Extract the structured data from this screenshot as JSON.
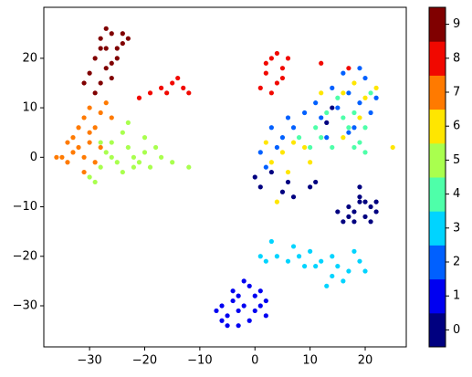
{
  "chart_data": {
    "type": "scatter",
    "xlim": [
      -38.3,
      27.45
    ],
    "ylim": [
      -38.3,
      30.3
    ],
    "xticks": [
      {
        "value": -30,
        "label": "−30"
      },
      {
        "value": -20,
        "label": "−20"
      },
      {
        "value": -10,
        "label": "−10"
      },
      0,
      10,
      20
    ],
    "yticks": [
      {
        "value": -30,
        "label": "−30"
      },
      {
        "value": -20,
        "label": "−20"
      },
      {
        "value": -10,
        "label": "−10"
      },
      0,
      10,
      20
    ],
    "series": [
      {
        "name": "0",
        "color": "#000080",
        "x": [
          17,
          18,
          19,
          20,
          21,
          22,
          18,
          19,
          21,
          20,
          17,
          22,
          15,
          16,
          5,
          6,
          10,
          11,
          0,
          1,
          3,
          14,
          13,
          7,
          19
        ],
        "y": [
          -10,
          -11,
          -9,
          -12,
          -10,
          -11,
          -13,
          -8,
          -13,
          -9,
          -12,
          -9,
          -11,
          -13,
          -7,
          -5,
          -6,
          -5,
          -4,
          -6,
          -3,
          10,
          7,
          -8,
          -6
        ]
      },
      {
        "name": "1",
        "color": "#0000f1",
        "x": [
          -2,
          -3,
          -5,
          -1,
          0,
          -4,
          -6,
          1,
          2,
          -3,
          -2,
          -7,
          0,
          -4,
          1,
          -5,
          -1,
          2,
          -3,
          -6
        ],
        "y": [
          -30,
          -28,
          -32,
          -33,
          -28,
          -27,
          -30,
          -30,
          -29,
          -34,
          -25,
          -31,
          -31,
          -29,
          -27,
          -34,
          -26,
          -32,
          -31,
          -33
        ]
      },
      {
        "name": "2",
        "color": "#0060ff",
        "x": [
          15,
          17,
          19,
          21,
          14,
          16,
          12,
          9,
          7,
          5,
          3,
          2,
          4,
          13,
          18,
          20,
          22,
          11,
          6,
          1,
          19,
          17
        ],
        "y": [
          10,
          13,
          11,
          9,
          14,
          17,
          8,
          9,
          6,
          4,
          6,
          -2,
          2,
          4,
          6,
          16,
          12,
          11,
          8,
          1,
          18,
          5
        ]
      },
      {
        "name": "3",
        "color": "#00d4ff",
        "x": [
          4,
          6,
          8,
          10,
          2,
          7,
          12,
          15,
          17,
          16,
          14,
          19,
          13,
          18,
          3,
          11,
          1,
          20,
          9,
          14
        ],
        "y": [
          -20,
          -21,
          -20,
          -19,
          -21,
          -18,
          -21,
          -22,
          -23,
          -25,
          -24,
          -21,
          -26,
          -19,
          -17,
          -22,
          -20,
          -23,
          -22,
          -20
        ]
      },
      {
        "name": "4",
        "color": "#4effa9",
        "x": [
          16,
          18,
          20,
          12,
          10,
          14,
          19,
          21,
          15,
          17,
          11,
          8,
          20,
          13,
          18
        ],
        "y": [
          8,
          9,
          6,
          4,
          2,
          2,
          3,
          13,
          12,
          6,
          6,
          4,
          1,
          9,
          2
        ]
      },
      {
        "name": "5",
        "color": "#a9ff4e",
        "x": [
          -25,
          -22,
          -20,
          -19,
          -23,
          -26,
          -28,
          -30,
          -29,
          -27,
          -24,
          -21,
          -17,
          -15,
          -12,
          -24,
          -20,
          -23,
          -26,
          -28,
          -18,
          -22
        ],
        "y": [
          -1,
          0,
          1,
          -2,
          2,
          3,
          -2,
          -4,
          -5,
          1,
          -3,
          -1,
          0,
          -1,
          -2,
          5,
          4,
          7,
          0,
          3,
          2,
          -2
        ]
      },
      {
        "name": "6",
        "color": "#ffe600",
        "x": [
          18,
          16,
          20,
          5,
          3,
          7,
          9,
          12,
          22,
          6,
          4,
          25,
          16,
          10,
          2,
          19
        ],
        "y": [
          15,
          13,
          12,
          1,
          -1,
          3,
          2,
          13,
          14,
          -3,
          -9,
          2,
          4,
          -1,
          3,
          8
        ]
      },
      {
        "name": "7",
        "color": "#ff7a00",
        "x": [
          -32,
          -33,
          -31,
          -30,
          -34,
          -29,
          -31,
          -28,
          -30,
          -33,
          -35,
          -29,
          -27,
          -26,
          -32,
          -34,
          -28,
          -30,
          -36,
          -31
        ],
        "y": [
          2,
          4,
          0,
          3,
          -1,
          6,
          8,
          9,
          5,
          1,
          0,
          -1,
          11,
          8,
          6,
          3,
          2,
          10,
          0,
          -3
        ]
      },
      {
        "name": "8",
        "color": "#f10800",
        "x": [
          2,
          3,
          4,
          5,
          1,
          6,
          3,
          2,
          5,
          4,
          -17,
          -15,
          -13,
          -19,
          -21,
          -14,
          -12,
          -16,
          12,
          17
        ],
        "y": [
          17,
          20,
          15,
          18,
          14,
          20,
          13,
          19,
          16,
          21,
          14,
          15,
          14,
          13,
          12,
          16,
          13,
          13,
          19,
          18
        ]
      },
      {
        "name": "9",
        "color": "#800000",
        "x": [
          -27,
          -26,
          -28,
          -25,
          -29,
          -27,
          -24,
          -26,
          -28,
          -30,
          -23,
          -25,
          -27,
          -29,
          -26,
          -24,
          -28,
          -31
        ],
        "y": [
          22,
          25,
          24,
          20,
          20,
          18,
          23,
          16,
          15,
          17,
          24,
          22,
          26,
          13,
          19,
          25,
          22,
          15
        ]
      }
    ]
  }
}
